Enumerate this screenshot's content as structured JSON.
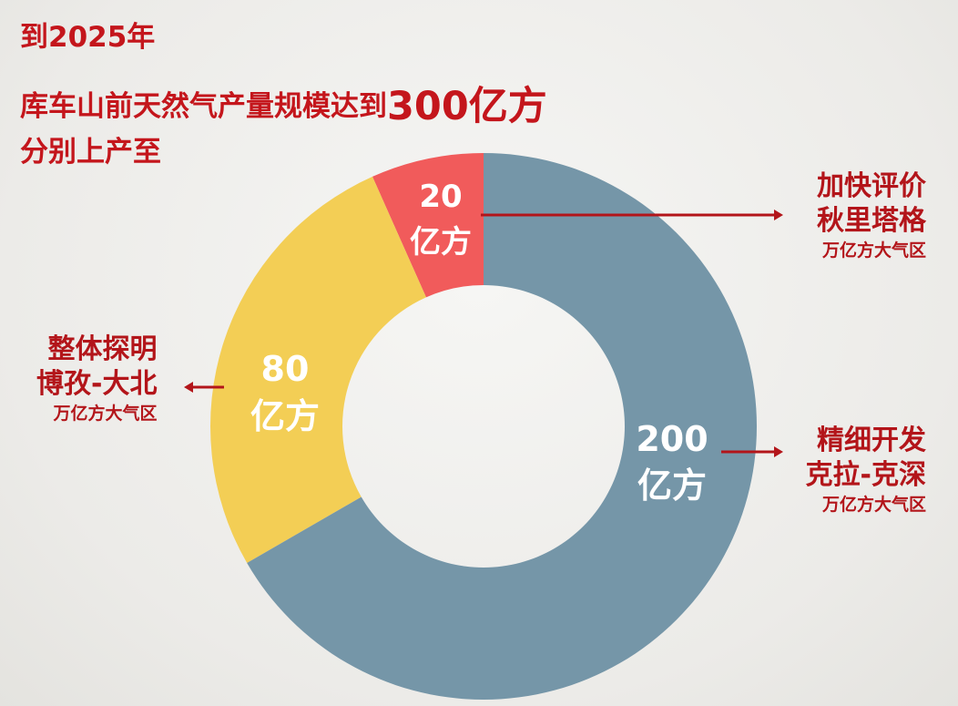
{
  "headline": {
    "line1": "到2025年",
    "line2_prefix": "库车山前天然气产量规模达到",
    "line2_highlight": "300亿方",
    "line3": "分别上产至"
  },
  "colors": {
    "headline": "#c4161c",
    "slice_small": "#f15b5b",
    "slice_medium": "#f3ce55",
    "slice_large": "#7596a8",
    "leader_line": "#b3151a",
    "label_text": "#ffffff"
  },
  "chart_data": {
    "type": "pie",
    "donut": true,
    "start_angle_deg": 0,
    "direction": "counterclockwise",
    "slices": [
      {
        "key": "small",
        "value": 20,
        "label_value": "20",
        "label_unit": "亿方",
        "color": "#f15b5b"
      },
      {
        "key": "medium",
        "value": 80,
        "label_value": "80",
        "label_unit": "亿方",
        "color": "#f3ce55"
      },
      {
        "key": "large",
        "value": 200,
        "label_value": "200",
        "label_unit": "亿方",
        "color": "#7596a8"
      }
    ],
    "total": 300
  },
  "callouts": {
    "small": {
      "line1": "加快评价",
      "line2": "秋里塔格",
      "line3": "万亿方大气区"
    },
    "medium": {
      "line1": "整体探明",
      "line2": "博孜-大北",
      "line3": "万亿方大气区"
    },
    "large": {
      "line1": "精细开发",
      "line2": "克拉-克深",
      "line3": "万亿方大气区"
    }
  }
}
